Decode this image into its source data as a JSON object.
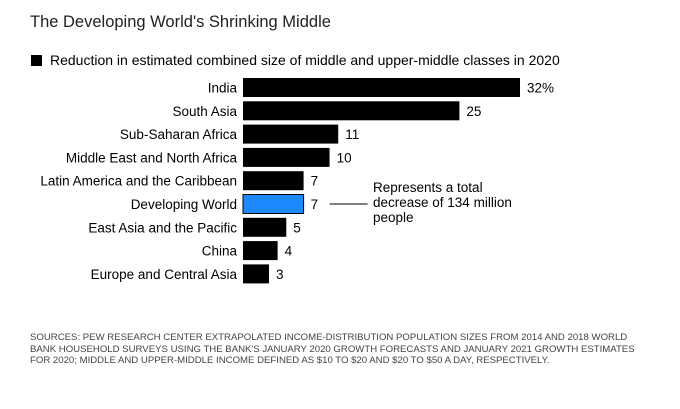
{
  "title": "The Developing World's Shrinking Middle",
  "legend": {
    "label": "Reduction in estimated combined size of middle and upper-middle classes in 2020"
  },
  "annotation": {
    "text": "Represents a total decrease of 134 million people"
  },
  "sources": "SOURCES: PEW RESEARCH CENTER EXTRAPOLATED INCOME-DISTRIBUTION POPULATION SIZES FROM 2014 AND 2018 WORLD BANK HOUSEHOLD SURVEYS USING THE BANK'S JANUARY 2020 GROWTH FORECASTS AND JANUARY 2021 GROWTH ESTIMATES FOR 2020; MIDDLE AND UPPER-MIDDLE INCOME DEFINED AS $10 TO $20 AND $20 TO $50 A DAY, RESPECTIVELY.",
  "colors": {
    "default_bar": "#000000",
    "highlight_bar": "#1e88ff",
    "highlight_border": "#000000"
  },
  "chart_data": {
    "type": "bar",
    "orientation": "horizontal",
    "title": "The Developing World's Shrinking Middle",
    "series_label": "Reduction in estimated combined size of middle and upper-middle classes in 2020",
    "categories": [
      "India",
      "South Asia",
      "Sub-Saharan Africa",
      "Middle East and North Africa",
      "Latin America and the Caribbean",
      "Developing World",
      "East Asia and the Pacific",
      "China",
      "Europe and Central Asia"
    ],
    "values": [
      32,
      25,
      11,
      10,
      7,
      7,
      5,
      4,
      3
    ],
    "value_labels": [
      "32%",
      "25",
      "11",
      "10",
      "7",
      "7",
      "5",
      "4",
      "3"
    ],
    "highlight": "Developing World",
    "xlim": [
      0,
      32
    ],
    "xlabel": "",
    "ylabel": ""
  }
}
